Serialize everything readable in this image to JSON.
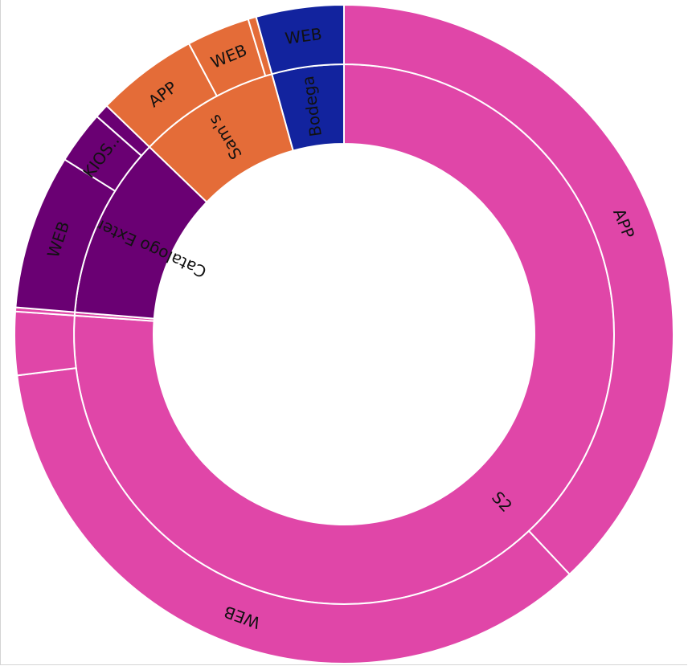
{
  "chart_data": {
    "type": "sunburst",
    "title": "",
    "rings": [
      {
        "ring": "inner",
        "segments": [
          {
            "label": "S2",
            "value": 76.1,
            "color": "#e046a8"
          },
          {
            "label": "",
            "value": 0.2,
            "color": "#e046a8"
          },
          {
            "label": "Catalogo Extendido",
            "value": 10.9,
            "color": "#6a0073"
          },
          {
            "label": "Sam's",
            "value": 8.5,
            "color": "#e46c38"
          },
          {
            "label": "Bodega",
            "value": 4.3,
            "color": "#12239e"
          }
        ]
      },
      {
        "ring": "outer",
        "segments": [
          {
            "label": "APP",
            "value": 38.0,
            "color": "#e046a8"
          },
          {
            "label": "WEB",
            "value": 35.0,
            "color": "#e046a8"
          },
          {
            "label": "",
            "value": 3.1,
            "color": "#e046a8"
          },
          {
            "label": "",
            "value": 0.2,
            "color": "#e046a8"
          },
          {
            "label": "WEB",
            "value": 7.6,
            "color": "#6a0073"
          },
          {
            "label": "KIOS...",
            "value": 2.6,
            "color": "#6a0073"
          },
          {
            "label": "",
            "value": 0.7,
            "color": "#6a0073"
          },
          {
            "label": "APP",
            "value": 5.0,
            "color": "#e46c38"
          },
          {
            "label": "WEB",
            "value": 3.1,
            "color": "#e46c38"
          },
          {
            "label": "",
            "value": 0.4,
            "color": "#e46c38"
          },
          {
            "label": "WEB",
            "value": 4.3,
            "color": "#12239e"
          }
        ]
      }
    ]
  }
}
